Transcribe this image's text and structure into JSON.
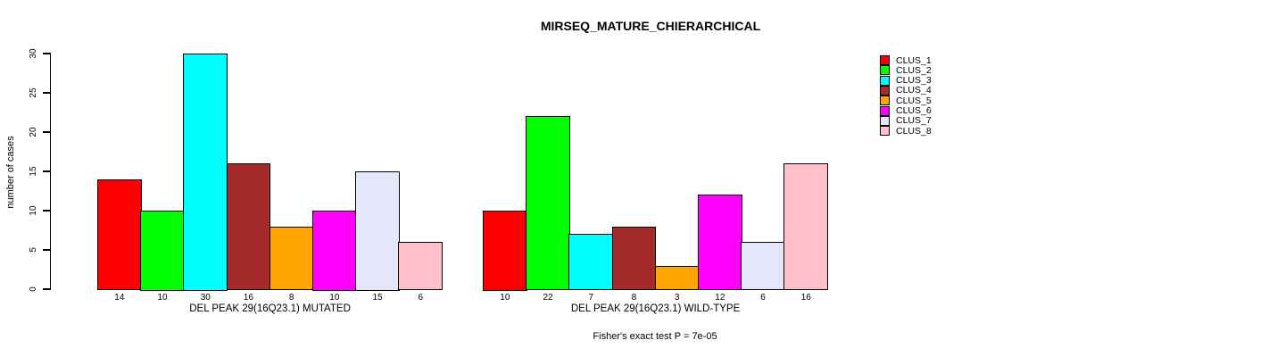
{
  "title": "MIRSEQ_MATURE_CHIERARCHICAL",
  "chart_data": {
    "type": "bar",
    "title": "MIRSEQ_MATURE_CHIERARCHICAL",
    "ylabel": "number of cases",
    "xlabel": "",
    "ylim": [
      0,
      30
    ],
    "yticks": [
      0,
      5,
      10,
      15,
      20,
      25,
      30
    ],
    "grid": false,
    "legend_position": "right-top",
    "bar_border_color": "#000000",
    "clusters": [
      {
        "name": "CLUS_1",
        "color": "#FF0000"
      },
      {
        "name": "CLUS_2",
        "color": "#00FF00"
      },
      {
        "name": "CLUS_3",
        "color": "#00FFFF"
      },
      {
        "name": "CLUS_4",
        "color": "#A52A2A"
      },
      {
        "name": "CLUS_5",
        "color": "#FFA500"
      },
      {
        "name": "CLUS_6",
        "color": "#FF00FF"
      },
      {
        "name": "CLUS_7",
        "color": "#E6E6FA"
      },
      {
        "name": "CLUS_8",
        "color": "#FFC0CB"
      }
    ],
    "groups": [
      {
        "label": "DEL PEAK 29(16Q23.1) MUTATED",
        "values": [
          14,
          10,
          30,
          16,
          8,
          10,
          15,
          6
        ]
      },
      {
        "label": "DEL PEAK 29(16Q23.1) WILD-TYPE",
        "values": [
          10,
          22,
          7,
          8,
          3,
          12,
          6,
          16
        ]
      }
    ],
    "annotation": "Fisher's exact test P = 7e-05"
  }
}
